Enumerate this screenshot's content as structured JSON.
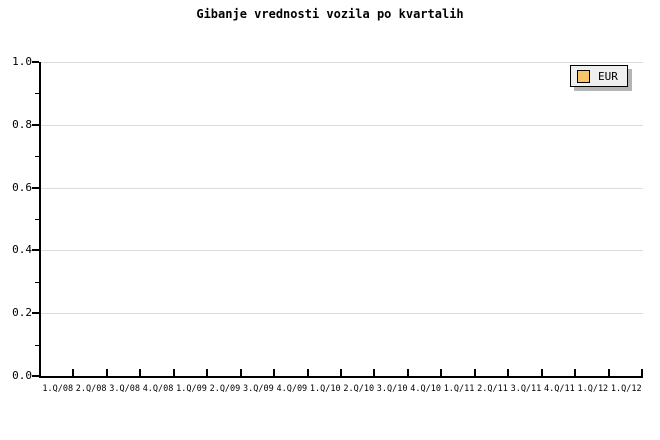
{
  "title": "Gibanje vrednosti vozila po kvartalih",
  "colors": {
    "gridline": "#dcdcdc",
    "axis": "#000000",
    "legend_bg": "#efefef",
    "legend_shadow": "#b4b4b4",
    "series_eur": "#fbc468"
  },
  "legend": {
    "position": "top-right"
  },
  "chart_data": {
    "type": "line",
    "title": "Gibanje vrednosti vozila po kvartalih",
    "xlabel": "",
    "ylabel": "",
    "ylim": [
      0,
      1
    ],
    "grid": true,
    "legend_position": "top-right",
    "y_ticks": [
      "1.0",
      "0.8",
      "0.6",
      "0.4",
      "0.2",
      "0.0"
    ],
    "categories": [
      "1.Q/08",
      "2.Q/08",
      "3.Q/08",
      "4.Q/08",
      "1.Q/09",
      "2.Q/09",
      "3.Q/09",
      "4.Q/09",
      "1.Q/10",
      "2.Q/10",
      "3.Q/10",
      "4.Q/10",
      "1.Q/11",
      "2.Q/11",
      "3.Q/11",
      "4.Q/11",
      "1.Q/12",
      "1.Q/12"
    ],
    "series": [
      {
        "name": "EUR",
        "color": "#fbc468",
        "values": []
      }
    ]
  }
}
